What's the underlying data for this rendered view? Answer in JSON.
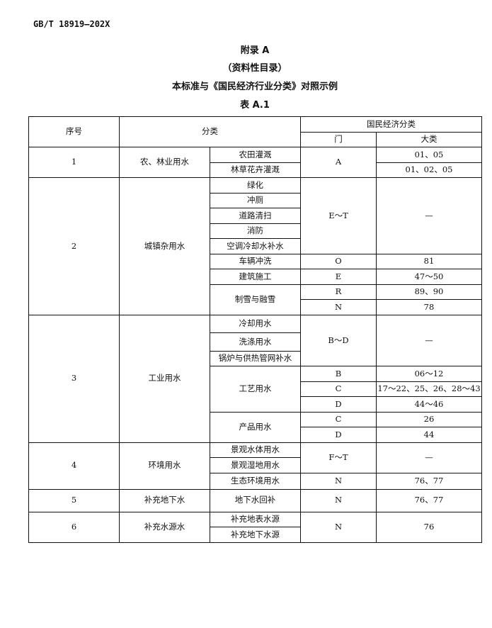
{
  "header": {
    "standard": "GB/T 18919—202X"
  },
  "titles": {
    "appendix": "附录 A",
    "nature": "（资料性目录）",
    "title": "本标准与《国民经济行业分类》对照示例",
    "table": "表 A.1"
  },
  "table": {
    "headers": {
      "no": "序号",
      "category": "分类",
      "nec": "国民经济分类",
      "men": "门",
      "dalei": "大类"
    },
    "g1": {
      "no": "1",
      "name": "农、林业用水",
      "i1": "农田灌溉",
      "i2": "林草花卉灌溉",
      "men": "A",
      "d1": "01、05",
      "d2": "01、02、05"
    },
    "g2": {
      "no": "2",
      "name": "城镇杂用水",
      "i1": "绿化",
      "i2": "冲厕",
      "i3": "道路清扫",
      "i4": "消防",
      "i5": "空调冷却水补水",
      "men1": "E～T",
      "d1": "—",
      "i6": "车辆冲洗",
      "men6": "O",
      "d6": "81",
      "i7": "建筑施工",
      "men7": "E",
      "d7": "47～50",
      "i8": "制雪与融雪",
      "men8a": "R",
      "d8a": "89、90",
      "men8b": "N",
      "d8b": "78"
    },
    "g3": {
      "no": "3",
      "name": "工业用水",
      "i1": "冷却用水",
      "i2": "洗涤用水",
      "i3": "锅炉与供热管网补水",
      "men1": "B～D",
      "d1": "—",
      "i4": "工艺用水",
      "m4a": "B",
      "d4a": "06～12",
      "m4b": "C",
      "d4b": "17～22、25、26、28～43",
      "m4c": "D",
      "d4c": "44～46",
      "i5": "产品用水",
      "m5a": "C",
      "d5a": "26",
      "m5b": "D",
      "d5b": "44"
    },
    "g4": {
      "no": "4",
      "name": "环境用水",
      "i1": "景观水体用水",
      "i2": "景观湿地用水",
      "men1": "F～T",
      "d1": "—",
      "i3": "生态环境用水",
      "men3": "N",
      "d3": "76、77"
    },
    "g5": {
      "no": "5",
      "name": "补充地下水",
      "i1": "地下水回补",
      "men": "N",
      "d": "76、77"
    },
    "g6": {
      "no": "6",
      "name": "补充水源水",
      "i1": "补充地表水源",
      "i2": "补充地下水源",
      "men": "N",
      "d": "76"
    }
  }
}
